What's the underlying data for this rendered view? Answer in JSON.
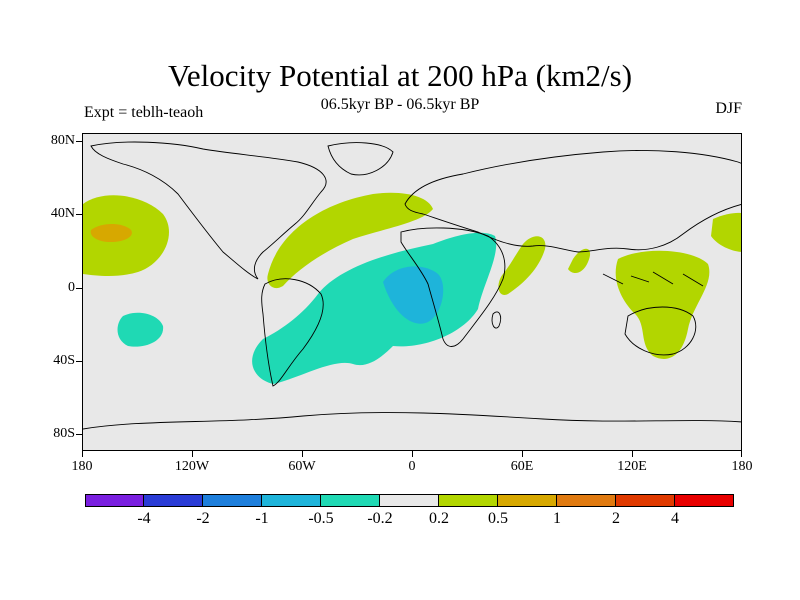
{
  "title": "Velocity Potential at 200 hPa (km2/s)",
  "subtitle": "06.5kyr BP - 06.5kyr BP",
  "experiment": "Expt = teblh-teaoh",
  "season": "DJF",
  "map": {
    "projection": "cylindrical equidistant",
    "lon_range": [
      -180,
      180
    ],
    "lat_range": [
      -90,
      90
    ],
    "background_color": "#e8e8e8",
    "y_axis_labels": [
      "80N",
      "40N",
      "0",
      "40S",
      "80S"
    ],
    "x_axis_labels": [
      "180",
      "120W",
      "60W",
      "0",
      "60E",
      "120E",
      "180"
    ],
    "regions": [
      {
        "name": "central-north-pacific-positive",
        "level": "0.2 to 0.5",
        "color": "#b2d600"
      },
      {
        "name": "central-north-pacific-core",
        "level": "0.5 to 1",
        "color": "#d7a800"
      },
      {
        "name": "north-atlantic-positive",
        "level": "0.2 to 0.5",
        "color": "#b2d600"
      },
      {
        "name": "indian-ocean-positive",
        "level": "0.2 to 0.5",
        "color": "#b2d600"
      },
      {
        "name": "maritime-continent-positive",
        "level": "0.2 to 0.5",
        "color": "#b2d600"
      },
      {
        "name": "south-atlantic-negative",
        "level": "-0.5 to -0.2",
        "color": "#1fd9b4"
      },
      {
        "name": "central-africa-negative",
        "level": "-1 to -0.5",
        "color": "#1eb4da"
      },
      {
        "name": "south-pacific-negative",
        "level": "-0.5 to -0.2",
        "color": "#1fd9b4"
      }
    ]
  },
  "colorbar": {
    "colors": [
      "#7a1fe0",
      "#2a3cd6",
      "#1e7fdc",
      "#1eb4da",
      "#1fd9b4",
      "#e8e8e8",
      "#b2d600",
      "#d7a800",
      "#e07a10",
      "#e03a00",
      "#e80000"
    ],
    "labels": [
      "-4",
      "-2",
      "-1",
      "-0.5",
      "-0.2",
      "0.2",
      "0.5",
      "1",
      "2",
      "4"
    ]
  }
}
